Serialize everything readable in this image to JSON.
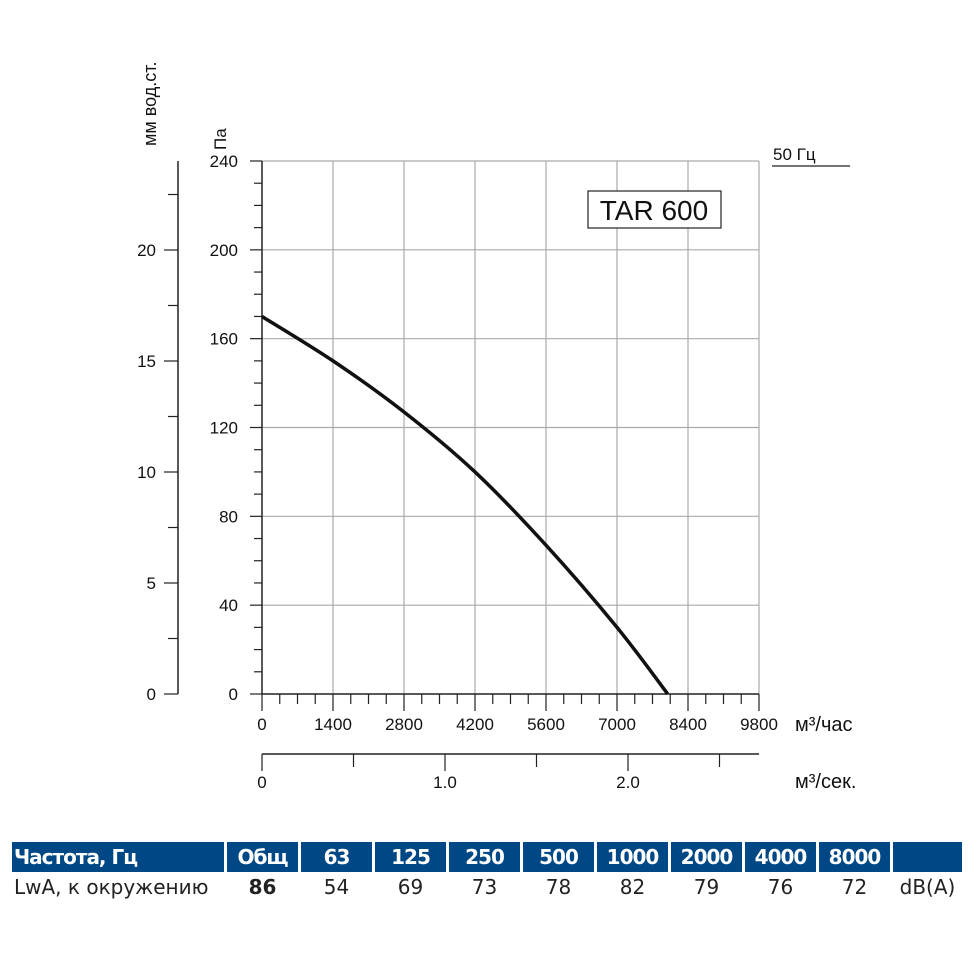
{
  "chart_data": {
    "type": "line",
    "title": "TAR 600",
    "frequency_label": "50 Гц",
    "xlabel": "м³/час",
    "xlabel_secondary": "м³/сек.",
    "ylabel": "Па",
    "ylabel_secondary": "мм вод.ст.",
    "xlim": [
      0,
      9800
    ],
    "ylim": [
      0,
      240
    ],
    "xlim_secondary": [
      0,
      2.72
    ],
    "ylim_secondary": [
      0,
      24
    ],
    "x_ticks": [
      "0",
      "1400",
      "2800",
      "4200",
      "5600",
      "7000",
      "8400",
      "9800"
    ],
    "y_ticks": [
      "0",
      "40",
      "80",
      "120",
      "160",
      "200",
      "240"
    ],
    "x_ticks_secondary": [
      "0",
      "1.0",
      "2.0"
    ],
    "y_ticks_secondary": [
      "0",
      "5",
      "10",
      "15",
      "20"
    ],
    "grid": true,
    "series": [
      {
        "x": [
          0,
          1400,
          2800,
          4200,
          5600,
          7000,
          8000
        ],
        "y": [
          170,
          150,
          127,
          100,
          67,
          30,
          0
        ]
      }
    ]
  },
  "table": {
    "header": [
      "Частота, Гц",
      "Общ",
      "63",
      "125",
      "250",
      "500",
      "1000",
      "2000",
      "4000",
      "8000",
      ""
    ],
    "row_label": "LwA, к окружению",
    "total": "86",
    "values": [
      "54",
      "69",
      "73",
      "78",
      "82",
      "79",
      "76",
      "72"
    ],
    "unit": "dB(A)"
  },
  "colors": {
    "header_bg": "#004785",
    "curve": "#111111",
    "grid": "#aaaaaa"
  }
}
